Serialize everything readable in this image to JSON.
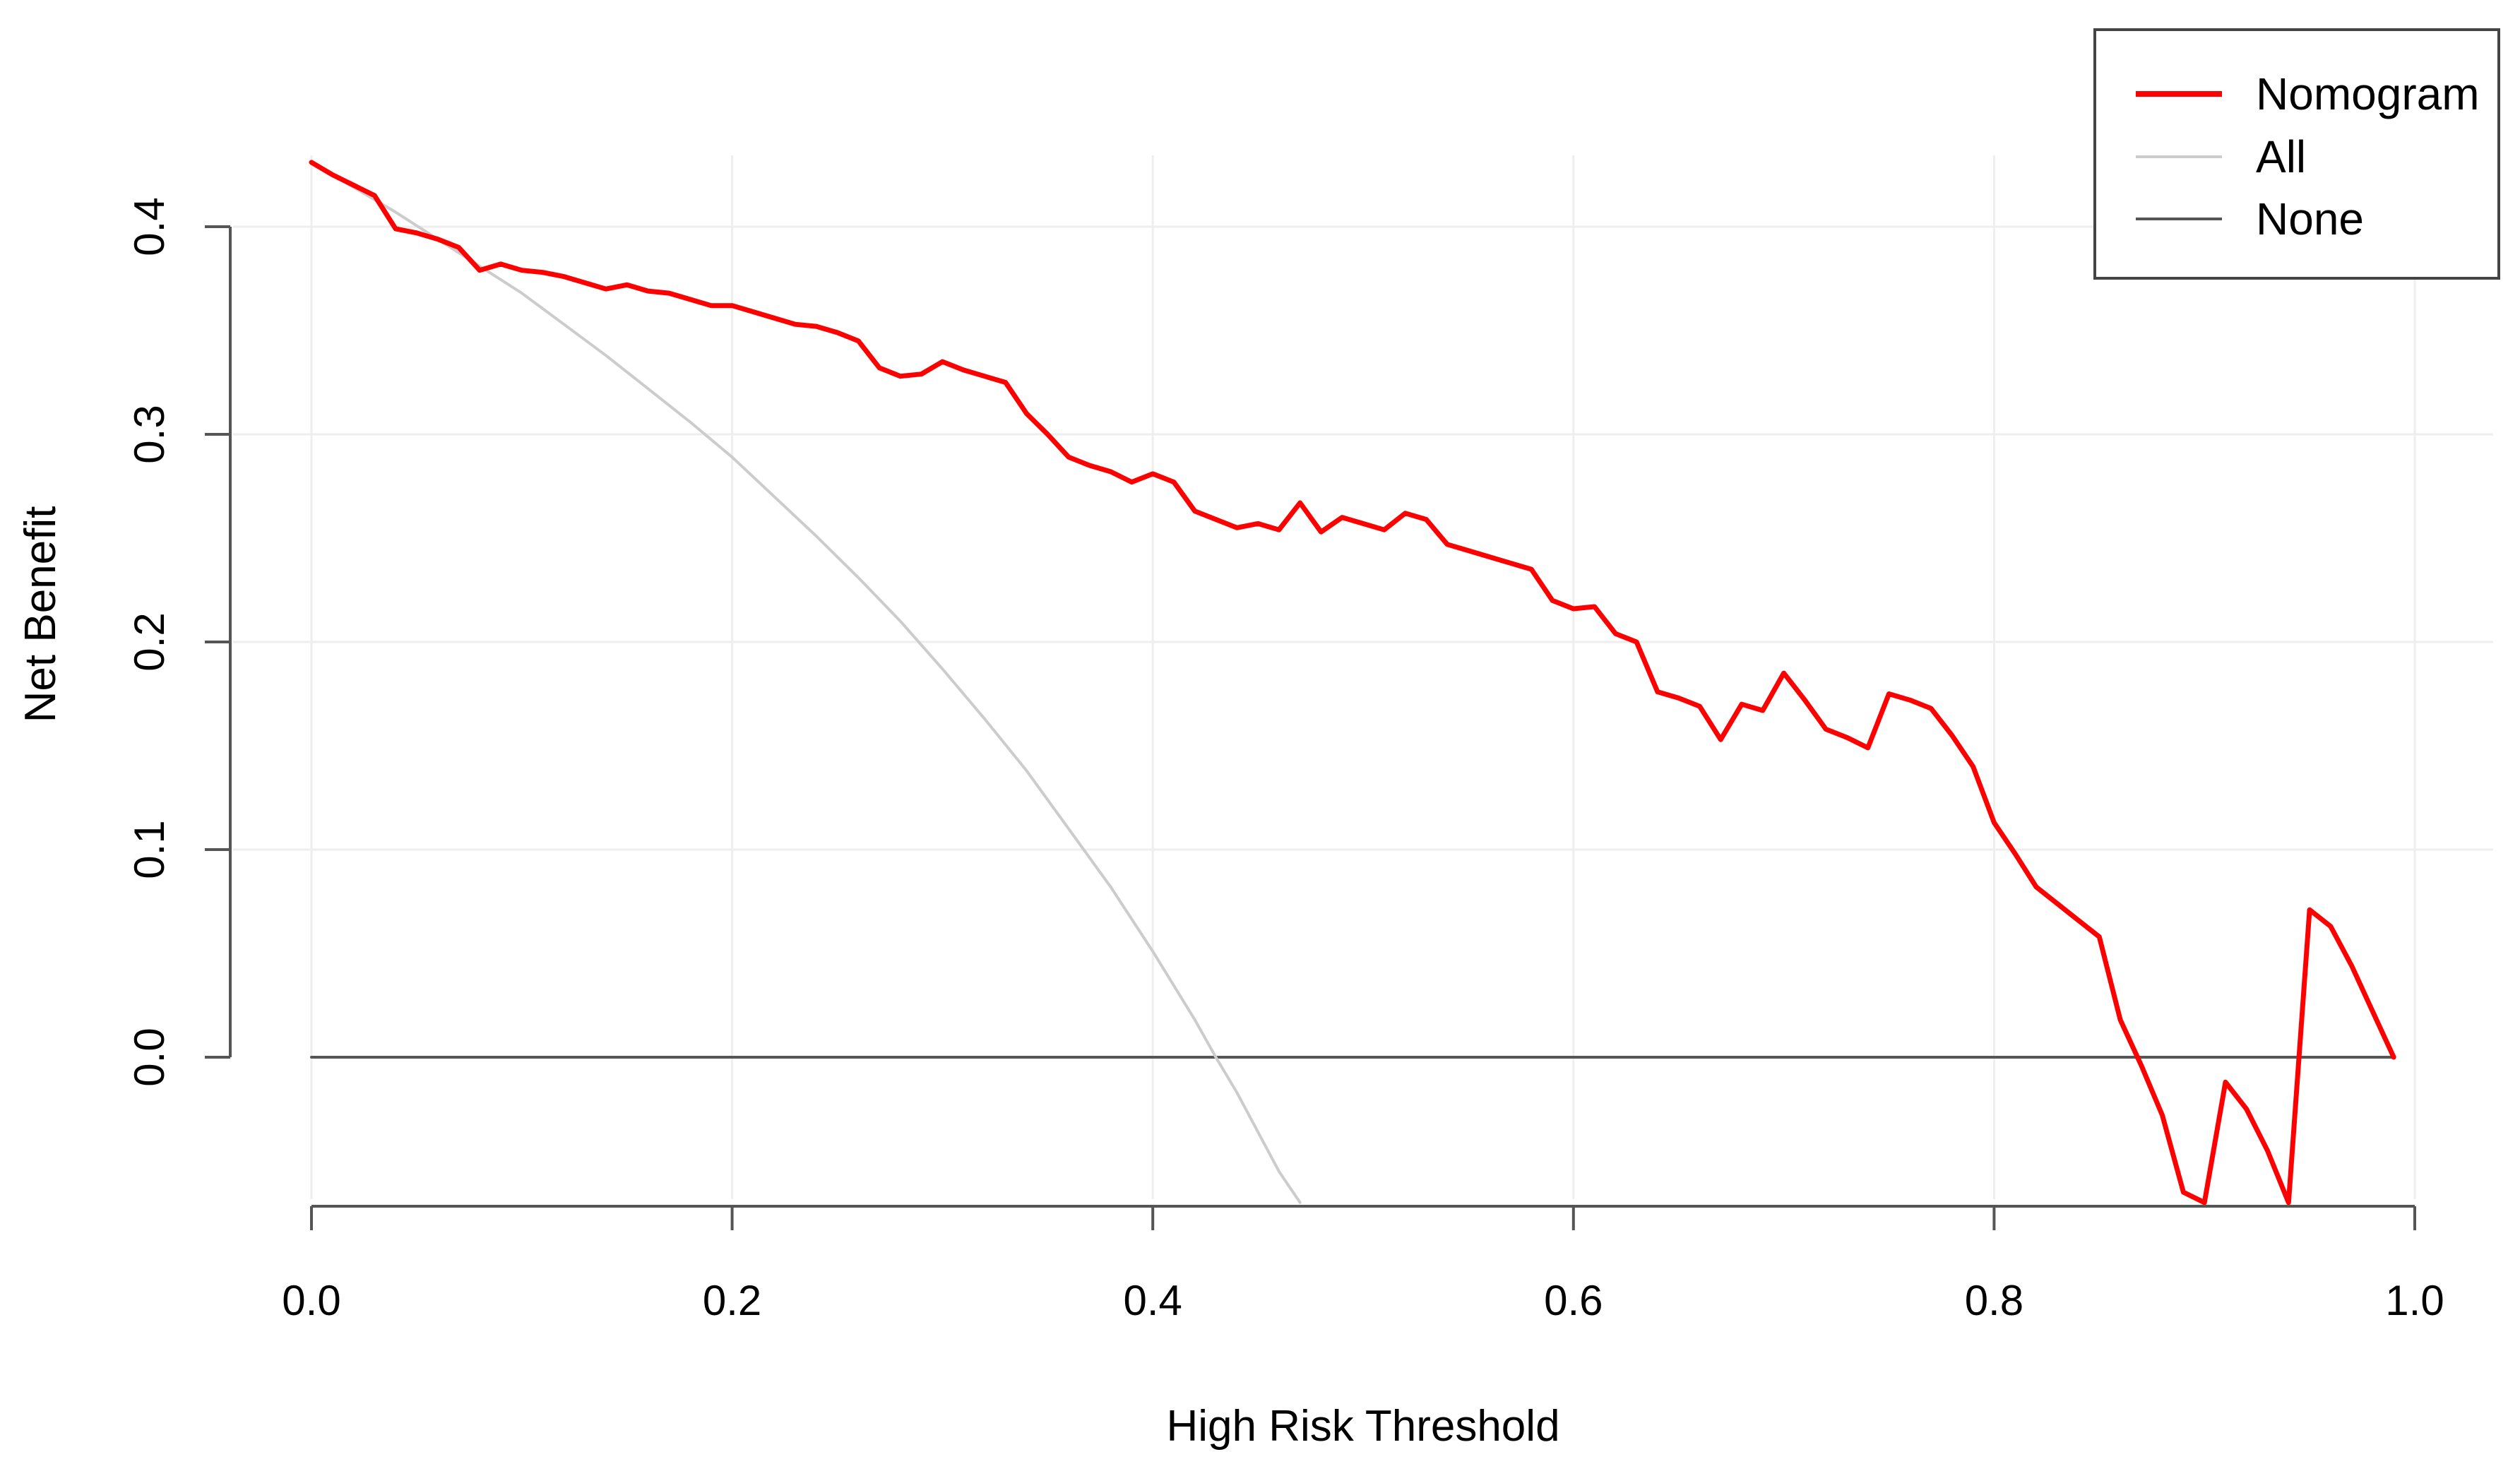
{
  "chart_data": {
    "type": "line",
    "title": "",
    "xlabel": "High Risk Threshold",
    "ylabel": "Net Benefit",
    "xlim": [
      0.0,
      1.0
    ],
    "ylim": [
      -0.07,
      0.43
    ],
    "x_ticks": [
      "0.0",
      "0.2",
      "0.4",
      "0.6",
      "0.8",
      "1.0"
    ],
    "y_ticks": [
      "0.0",
      "0.1",
      "0.2",
      "0.3",
      "0.4"
    ],
    "grid": true,
    "legend_position": "top-right",
    "series": [
      {
        "name": "Nomogram",
        "color": "#ff0000",
        "x": [
          0.0,
          0.01,
          0.02,
          0.03,
          0.04,
          0.05,
          0.06,
          0.07,
          0.08,
          0.09,
          0.1,
          0.11,
          0.12,
          0.13,
          0.14,
          0.15,
          0.16,
          0.17,
          0.18,
          0.19,
          0.2,
          0.21,
          0.22,
          0.23,
          0.24,
          0.25,
          0.26,
          0.27,
          0.28,
          0.29,
          0.3,
          0.31,
          0.32,
          0.33,
          0.34,
          0.35,
          0.36,
          0.37,
          0.38,
          0.39,
          0.4,
          0.41,
          0.42,
          0.43,
          0.44,
          0.45,
          0.46,
          0.47,
          0.48,
          0.49,
          0.5,
          0.51,
          0.52,
          0.53,
          0.54,
          0.55,
          0.56,
          0.57,
          0.58,
          0.59,
          0.6,
          0.61,
          0.62,
          0.63,
          0.64,
          0.65,
          0.66,
          0.67,
          0.68,
          0.69,
          0.7,
          0.71,
          0.72,
          0.73,
          0.74,
          0.75,
          0.76,
          0.77,
          0.78,
          0.79,
          0.8,
          0.81,
          0.82,
          0.83,
          0.84,
          0.85,
          0.86,
          0.87,
          0.88,
          0.89,
          0.9,
          0.91,
          0.92,
          0.93,
          0.94,
          0.95,
          0.96,
          0.97,
          0.98,
          0.99
        ],
        "y": [
          0.431,
          0.425,
          0.42,
          0.415,
          0.399,
          0.397,
          0.394,
          0.39,
          0.379,
          0.382,
          0.379,
          0.378,
          0.376,
          0.373,
          0.37,
          0.372,
          0.369,
          0.368,
          0.365,
          0.362,
          0.362,
          0.359,
          0.356,
          0.353,
          0.352,
          0.349,
          0.345,
          0.332,
          0.328,
          0.329,
          0.335,
          0.331,
          0.328,
          0.325,
          0.31,
          0.3,
          0.289,
          0.285,
          0.282,
          0.277,
          0.281,
          0.277,
          0.263,
          0.259,
          0.255,
          0.257,
          0.254,
          0.267,
          0.253,
          0.26,
          0.257,
          0.254,
          0.262,
          0.259,
          0.247,
          0.244,
          0.241,
          0.238,
          0.235,
          0.22,
          0.216,
          0.217,
          0.204,
          0.2,
          0.176,
          0.173,
          0.169,
          0.153,
          0.17,
          0.167,
          0.185,
          0.172,
          0.158,
          0.154,
          0.149,
          0.175,
          0.172,
          0.168,
          0.155,
          0.14,
          0.113,
          0.098,
          0.082,
          0.074,
          0.066,
          0.058,
          0.018,
          -0.004,
          -0.028,
          -0.065,
          -0.07,
          -0.012,
          -0.025,
          -0.045,
          -0.07,
          0.071,
          0.063,
          0.044,
          0.022,
          0.0
        ]
      },
      {
        "name": "All",
        "color": "#cccccc",
        "x": [
          0.0,
          0.02,
          0.04,
          0.06,
          0.08,
          0.1,
          0.12,
          0.14,
          0.16,
          0.18,
          0.2,
          0.22,
          0.24,
          0.26,
          0.28,
          0.3,
          0.32,
          0.34,
          0.36,
          0.38,
          0.4,
          0.42,
          0.43,
          0.44,
          0.46,
          0.47
        ],
        "y": [
          0.431,
          0.419,
          0.407,
          0.394,
          0.381,
          0.368,
          0.353,
          0.338,
          0.322,
          0.306,
          0.289,
          0.27,
          0.251,
          0.231,
          0.21,
          0.187,
          0.163,
          0.138,
          0.11,
          0.082,
          0.051,
          0.018,
          0.0,
          -0.017,
          -0.055,
          -0.07
        ]
      },
      {
        "name": "None",
        "color": "#555555",
        "x": [
          0.0,
          0.99
        ],
        "y": [
          0.0,
          0.0
        ]
      }
    ]
  }
}
